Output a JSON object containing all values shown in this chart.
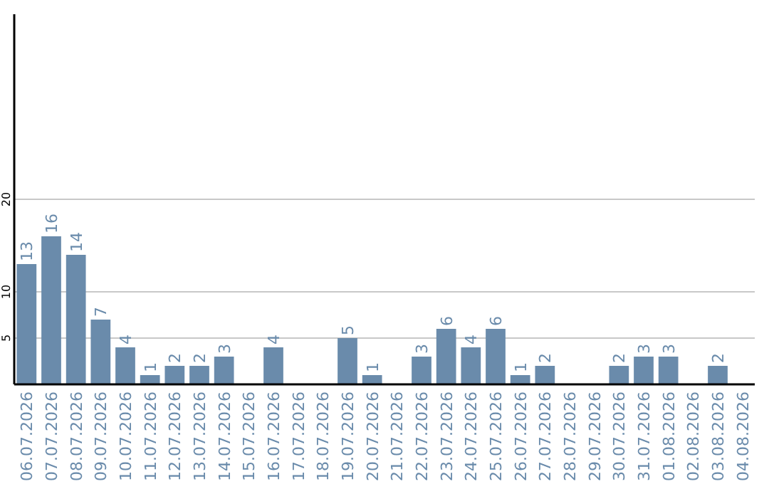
{
  "chart_data": {
    "type": "bar",
    "categories": [
      "06.07.2026",
      "07.07.2026",
      "08.07.2026",
      "09.07.2026",
      "10.07.2026",
      "11.07.2026",
      "12.07.2026",
      "13.07.2026",
      "14.07.2026",
      "15.07.2026",
      "16.07.2026",
      "17.07.2026",
      "18.07.2026",
      "19.07.2026",
      "20.07.2026",
      "21.07.2026",
      "22.07.2026",
      "23.07.2026",
      "24.07.2026",
      "25.07.2026",
      "26.07.2026",
      "27.07.2026",
      "28.07.2026",
      "29.07.2026",
      "30.07.2026",
      "31.07.2026",
      "01.08.2026",
      "02.08.2026",
      "03.08.2026",
      "04.08.2026"
    ],
    "values": [
      13,
      16,
      14,
      7,
      4,
      1,
      2,
      2,
      3,
      null,
      4,
      null,
      null,
      5,
      1,
      null,
      3,
      6,
      4,
      6,
      1,
      2,
      null,
      null,
      2,
      3,
      3,
      null,
      2,
      null
    ],
    "color": "#6a8bab",
    "ylim": [
      0,
      40
    ],
    "yticks": [
      5,
      10,
      20
    ],
    "grid": "y",
    "data_labels": true
  }
}
